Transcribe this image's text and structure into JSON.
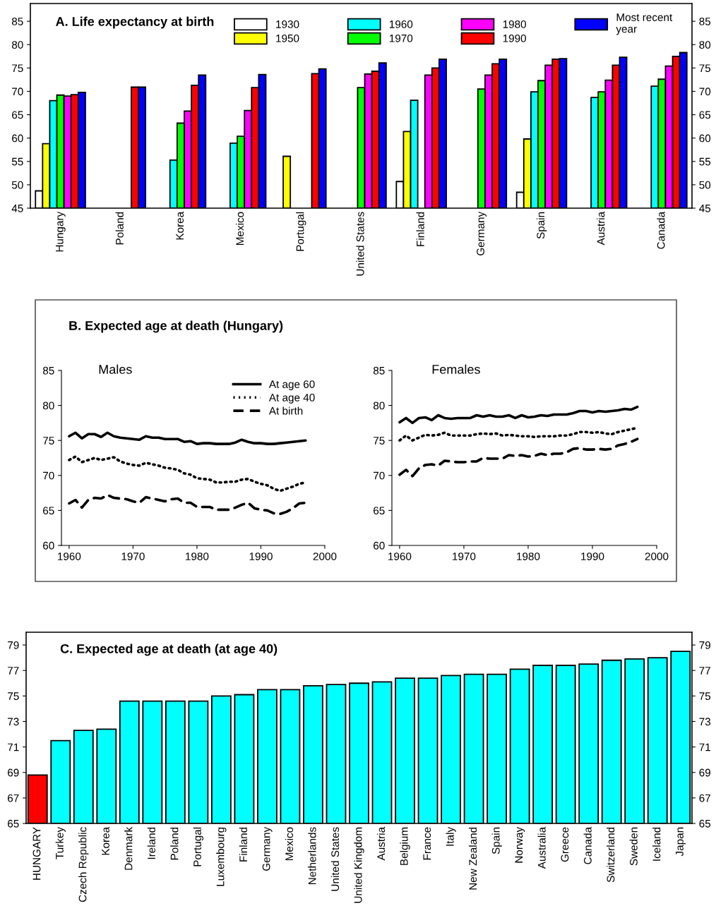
{
  "chart_data": [
    {
      "type": "bar",
      "title": "A. Life expectancy at birth",
      "categories": [
        "Hungary",
        "Poland",
        "Korea",
        "Mexico",
        "Portugal",
        "United States",
        "Finland",
        "Germany",
        "Spain",
        "Austria",
        "Canada"
      ],
      "series": [
        {
          "name": "1930",
          "color": "#ffffff",
          "values": [
            48.7,
            null,
            null,
            null,
            null,
            null,
            50.7,
            null,
            48.4,
            null,
            null
          ]
        },
        {
          "name": "1950",
          "color": "#ffff00",
          "values": [
            58.8,
            null,
            null,
            null,
            56.1,
            null,
            61.4,
            null,
            59.8,
            null,
            null
          ]
        },
        {
          "name": "1960",
          "color": "#00ffff",
          "values": [
            68.0,
            null,
            55.3,
            58.9,
            null,
            null,
            68.1,
            null,
            69.9,
            68.7,
            71.1
          ]
        },
        {
          "name": "1970",
          "color": "#00ff00",
          "values": [
            69.2,
            null,
            63.2,
            60.4,
            null,
            70.8,
            null,
            70.5,
            72.3,
            69.9,
            72.6
          ]
        },
        {
          "name": "1980",
          "color": "#ff00ff",
          "values": [
            69.0,
            null,
            65.8,
            65.9,
            null,
            73.7,
            73.5,
            73.5,
            75.6,
            72.4,
            75.4
          ]
        },
        {
          "name": "1990",
          "color": "#ff0000",
          "values": [
            69.3,
            70.9,
            71.3,
            70.8,
            73.8,
            74.3,
            75.0,
            75.9,
            76.9,
            75.6,
            77.5
          ]
        },
        {
          "name": "Most recent\nyear",
          "color": "#0000ff",
          "values": [
            69.8,
            70.9,
            73.5,
            73.6,
            74.8,
            76.1,
            76.9,
            76.9,
            77.0,
            77.3,
            78.3
          ]
        }
      ],
      "ylim": [
        45,
        88.8
      ],
      "yticks": [
        45,
        50,
        55,
        60,
        65,
        70,
        75,
        80,
        85
      ],
      "y2lim": [
        45,
        88.8
      ],
      "y2ticks": [
        45,
        50,
        55,
        60,
        65,
        70,
        75,
        80,
        85
      ],
      "grid": false,
      "legend": "top right"
    },
    {
      "type": "line",
      "title": "B. Expected age at death (Hungary)",
      "subtitle": "Males",
      "x": [
        1960,
        1961,
        1962,
        1963,
        1964,
        1965,
        1966,
        1967,
        1968,
        1969,
        1970,
        1971,
        1972,
        1973,
        1974,
        1975,
        1976,
        1977,
        1978,
        1979,
        1980,
        1981,
        1982,
        1983,
        1984,
        1985,
        1986,
        1987,
        1988,
        1989,
        1990,
        1991,
        1992,
        1993,
        1994,
        1995,
        1996,
        1997
      ],
      "series": [
        {
          "name": "At age 60",
          "color": "#000000",
          "line_style": "solid",
          "values": [
            75.6,
            76.1,
            75.3,
            75.9,
            75.9,
            75.5,
            76.1,
            75.6,
            75.4,
            75.3,
            75.2,
            75.1,
            75.6,
            75.4,
            75.4,
            75.2,
            75.2,
            75.2,
            74.8,
            74.9,
            74.5,
            74.6,
            74.6,
            74.5,
            74.5,
            74.5,
            74.7,
            75.1,
            74.8,
            74.6,
            74.6,
            74.5,
            74.5,
            74.6,
            74.7,
            74.8,
            74.9,
            75.0
          ]
        },
        {
          "name": "At age 40",
          "color": "#000000",
          "line_style": "dotted",
          "values": [
            72.2,
            72.7,
            71.9,
            72.2,
            72.5,
            72.2,
            72.4,
            72.6,
            72.0,
            71.7,
            71.5,
            71.4,
            71.8,
            71.6,
            71.4,
            71.1,
            71.0,
            70.8,
            70.3,
            70.1,
            69.6,
            69.5,
            69.4,
            69.0,
            69.0,
            69.1,
            69.1,
            69.4,
            69.5,
            69.1,
            68.8,
            68.6,
            68.1,
            67.8,
            68.1,
            68.4,
            68.8,
            69.0
          ]
        },
        {
          "name": "At birth",
          "color": "#000000",
          "line_style": "dashed",
          "values": [
            66.0,
            66.5,
            65.4,
            66.5,
            66.8,
            66.7,
            67.2,
            66.8,
            66.7,
            66.6,
            66.3,
            66.1,
            66.9,
            66.7,
            66.5,
            66.3,
            66.6,
            66.7,
            66.1,
            66.1,
            65.5,
            65.5,
            65.5,
            65.1,
            65.1,
            65.1,
            65.4,
            65.8,
            66.1,
            65.3,
            65.1,
            65.0,
            64.6,
            64.5,
            64.8,
            65.3,
            66.0,
            66.1
          ]
        }
      ],
      "xlim": [
        1958.8,
        2000
      ],
      "xticks": [
        1960,
        1970,
        1980,
        1990,
        2000
      ],
      "ylim": [
        60,
        85
      ],
      "yticks": [
        60,
        65,
        70,
        75,
        80,
        85
      ],
      "grid": false,
      "legend": "top right",
      "marker": "none"
    },
    {
      "type": "line",
      "subtitle": "Females",
      "x": [
        1960,
        1961,
        1962,
        1963,
        1964,
        1965,
        1966,
        1967,
        1968,
        1969,
        1970,
        1971,
        1972,
        1973,
        1974,
        1975,
        1976,
        1977,
        1978,
        1979,
        1980,
        1981,
        1982,
        1983,
        1984,
        1985,
        1986,
        1987,
        1988,
        1989,
        1990,
        1991,
        1992,
        1993,
        1994,
        1995,
        1996,
        1997
      ],
      "series": [
        {
          "color": "#000000",
          "line_style": "solid",
          "values": [
            77.6,
            78.2,
            77.5,
            78.2,
            78.3,
            77.9,
            78.6,
            78.2,
            78.1,
            78.2,
            78.2,
            78.2,
            78.6,
            78.4,
            78.6,
            78.4,
            78.4,
            78.6,
            78.2,
            78.6,
            78.3,
            78.4,
            78.6,
            78.5,
            78.7,
            78.7,
            78.7,
            78.9,
            79.2,
            79.2,
            79.0,
            79.2,
            79.1,
            79.2,
            79.3,
            79.5,
            79.4,
            79.8
          ]
        },
        {
          "color": "#000000",
          "line_style": "dotted",
          "values": [
            75.0,
            75.7,
            75.0,
            75.4,
            75.8,
            75.7,
            75.8,
            76.1,
            75.7,
            75.7,
            75.7,
            75.7,
            75.9,
            76.0,
            75.9,
            76.0,
            75.7,
            75.8,
            75.7,
            75.6,
            75.6,
            75.5,
            75.6,
            75.6,
            75.6,
            75.7,
            75.7,
            75.9,
            76.2,
            76.2,
            76.1,
            76.2,
            76.0,
            75.9,
            76.2,
            76.4,
            76.6,
            76.8
          ]
        },
        {
          "color": "#000000",
          "line_style": "dashed",
          "values": [
            70.1,
            70.8,
            69.9,
            71.0,
            71.5,
            71.6,
            71.4,
            72.1,
            72.0,
            71.9,
            71.9,
            72.0,
            72.0,
            72.5,
            72.4,
            72.4,
            72.4,
            72.9,
            72.8,
            72.9,
            72.7,
            72.8,
            73.1,
            72.9,
            73.1,
            73.1,
            73.3,
            73.8,
            73.9,
            73.7,
            73.7,
            73.8,
            73.7,
            73.8,
            74.3,
            74.5,
            74.8,
            75.2
          ]
        }
      ],
      "xlim": [
        1958.8,
        2000
      ],
      "xticks": [
        1960,
        1970,
        1980,
        1990,
        2000
      ],
      "ylim": [
        60,
        85
      ],
      "yticks": [
        60,
        65,
        70,
        75,
        80,
        85
      ],
      "grid": false,
      "marker": "none"
    },
    {
      "type": "bar",
      "title": "C. Expected age at death (at age 40)",
      "categories": [
        "HUNGARY",
        "Turkey",
        "Czech Republic",
        "Korea",
        "Denmark",
        "Ireland",
        "Poland",
        "Portugal",
        "Luxembourg",
        "Finland",
        "Germany",
        "Mexico",
        "Netherlands",
        "United States",
        "United Kingdom",
        "Austria",
        "Belgium",
        "France",
        "Italy",
        "New Zealand",
        "Spain",
        "Norway",
        "Australia",
        "Greece",
        "Canada",
        "Switzerland",
        "Sweden",
        "Iceland",
        "Japan"
      ],
      "values": [
        68.8,
        71.5,
        72.3,
        72.4,
        74.6,
        74.6,
        74.6,
        74.6,
        75.0,
        75.1,
        75.5,
        75.5,
        75.8,
        75.9,
        76.0,
        76.1,
        76.4,
        76.4,
        76.6,
        76.7,
        76.7,
        77.1,
        77.4,
        77.4,
        77.5,
        77.8,
        77.9,
        78.0,
        78.5
      ],
      "colors": [
        "#ff0000",
        "#00ffff",
        "#00ffff",
        "#00ffff",
        "#00ffff",
        "#00ffff",
        "#00ffff",
        "#00ffff",
        "#00ffff",
        "#00ffff",
        "#00ffff",
        "#00ffff",
        "#00ffff",
        "#00ffff",
        "#00ffff",
        "#00ffff",
        "#00ffff",
        "#00ffff",
        "#00ffff",
        "#00ffff",
        "#00ffff",
        "#00ffff",
        "#00ffff",
        "#00ffff",
        "#00ffff",
        "#00ffff",
        "#00ffff",
        "#00ffff",
        "#00ffff"
      ],
      "ylim": [
        65,
        80
      ],
      "yticks": [
        65,
        67,
        69,
        71,
        73,
        75,
        77,
        79
      ],
      "y2lim": [
        65,
        80
      ],
      "y2ticks": [
        65,
        67,
        69,
        71,
        73,
        75,
        77,
        79
      ],
      "grid": false,
      "legend": false
    }
  ]
}
